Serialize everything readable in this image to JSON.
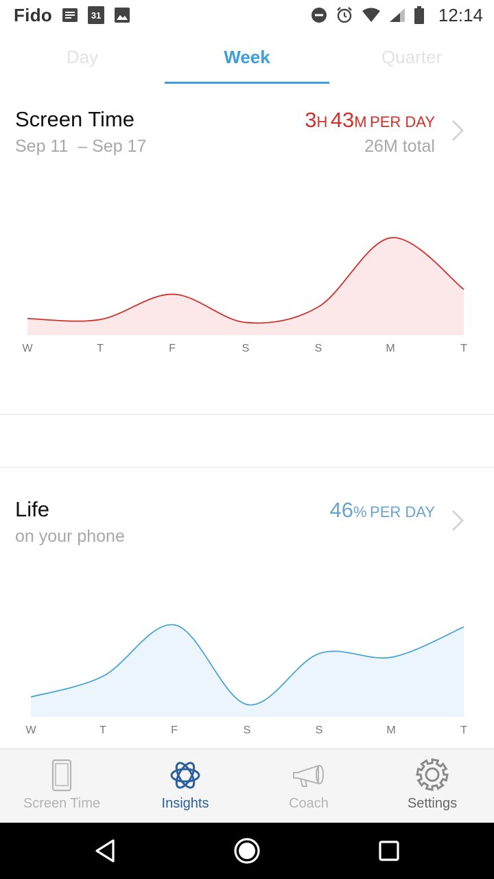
{
  "status_bar": {
    "carrier": "Fido",
    "calendar_day": "31",
    "time": "12:14"
  },
  "tabs": [
    {
      "label": "Day",
      "active": false
    },
    {
      "label": "Week",
      "active": true
    },
    {
      "label": "Quarter",
      "active": false
    }
  ],
  "screen_time": {
    "title": "Screen Time",
    "date_range": "Sep 11  – Sep 17",
    "hours": "3",
    "hours_unit": "H",
    "minutes": "43",
    "minutes_unit": "M",
    "per_day": "PER DAY",
    "total": "26M total",
    "accent_color": "#d1302b"
  },
  "life": {
    "title": "Life",
    "subtitle": "on your phone",
    "percent": "46",
    "percent_unit": "%",
    "per_day": "PER DAY",
    "accent_color": "#4aa6d6"
  },
  "chart_data": [
    {
      "type": "area",
      "categories": [
        "W",
        "T",
        "F",
        "S",
        "S",
        "M",
        "T"
      ],
      "values": [
        0.17,
        0.16,
        0.42,
        0.13,
        0.29,
        1.0,
        0.47
      ],
      "title": "",
      "xlabel": "",
      "ylabel": "",
      "ylim": [
        0,
        1.1
      ],
      "grid": false,
      "line_color": "#d1302b",
      "fill_color": "#fce8e8"
    },
    {
      "type": "area",
      "categories": [
        "W",
        "T",
        "F",
        "S",
        "S",
        "M",
        "T"
      ],
      "values": [
        0.21,
        0.43,
        0.97,
        0.13,
        0.67,
        0.63,
        0.95
      ],
      "title": "",
      "xlabel": "",
      "ylabel": "",
      "ylim": [
        0,
        1.0
      ],
      "grid": false,
      "line_color": "#4aa6d6",
      "fill_color": "#edf5fc"
    }
  ],
  "bottom_nav": [
    {
      "label": "Screen Time",
      "icon": "phone-icon",
      "active": false
    },
    {
      "label": "Insights",
      "icon": "insights-icon",
      "active": true
    },
    {
      "label": "Coach",
      "icon": "megaphone-icon",
      "active": false
    },
    {
      "label": "Settings",
      "icon": "gear-icon",
      "active": false
    }
  ],
  "system_nav": [
    "back-icon",
    "home-icon",
    "recents-icon"
  ]
}
